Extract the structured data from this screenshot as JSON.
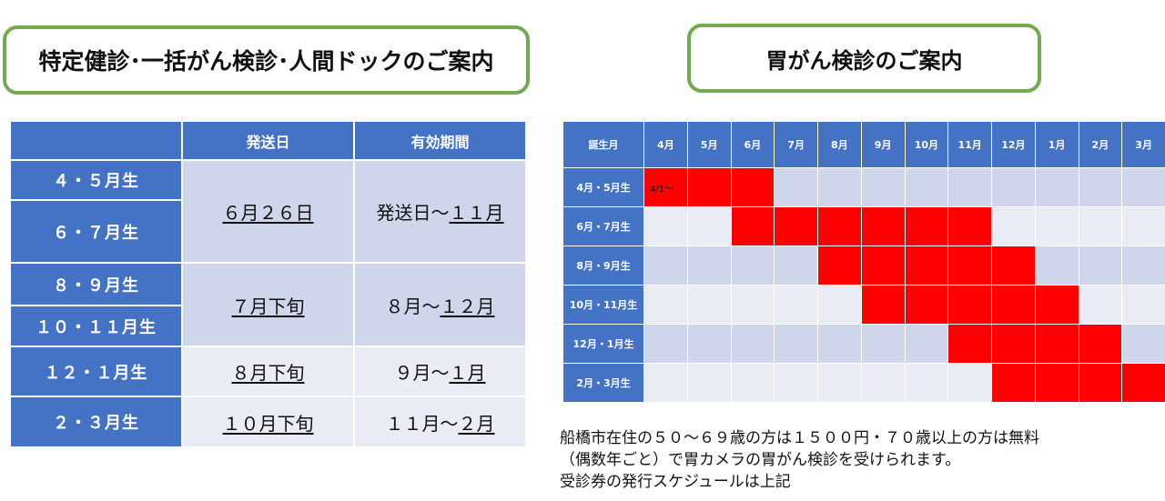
{
  "titles": {
    "left": "特定健診･一括がん検診･人間ドックのご案内",
    "right": "胃がん検診のご案内"
  },
  "schedule": {
    "headers": [
      "",
      "発送日",
      "有効期間"
    ],
    "groups": [
      "４・５月生",
      "６・７月生",
      "８・９月生",
      "１０・１１月生",
      "１２・１月生",
      "２・３月生"
    ],
    "rows": [
      {
        "send": "６月２６日",
        "period_prefix": "発送日～",
        "period_end": "１１月"
      },
      {
        "send": "７月下旬",
        "period_prefix": "８月～",
        "period_end": "１２月"
      },
      {
        "send": "８月下旬",
        "period_prefix": "９月～",
        "period_end": "１月"
      },
      {
        "send": "１０月下旬",
        "period_prefix": "１１月～",
        "period_end": "２月"
      }
    ]
  },
  "chart": {
    "corner": "誕生月",
    "months": [
      "4月",
      "5月",
      "6月",
      "7月",
      "8月",
      "9月",
      "10月",
      "11月",
      "12月",
      "1月",
      "2月",
      "3月"
    ],
    "groups": [
      {
        "label": "4月・5月生",
        "start": 0,
        "end": 2,
        "note": "4/1～"
      },
      {
        "label": "6月・7月生",
        "start": 2,
        "end": 7,
        "note": ""
      },
      {
        "label": "8月・9月生",
        "start": 4,
        "end": 8,
        "note": ""
      },
      {
        "label": "10月・11月生",
        "start": 5,
        "end": 9,
        "note": ""
      },
      {
        "label": "12月・1月生",
        "start": 7,
        "end": 10,
        "note": ""
      },
      {
        "label": "2月・3月生",
        "start": 8,
        "end": 11,
        "note": ""
      }
    ],
    "colors": {
      "header": "#4472c4",
      "active": "#ff0000",
      "band_dark": "#cfd5ea",
      "band_light": "#e9ebf5"
    }
  },
  "note": {
    "line1": "船橋市在住の５０～６９歳の方は１５００円・７０歳以上の方は無料",
    "line2": "（偶数年ごと）で胃カメラの胃がん検診を受けられます。",
    "line3": "受診券の発行スケジュールは上記"
  }
}
